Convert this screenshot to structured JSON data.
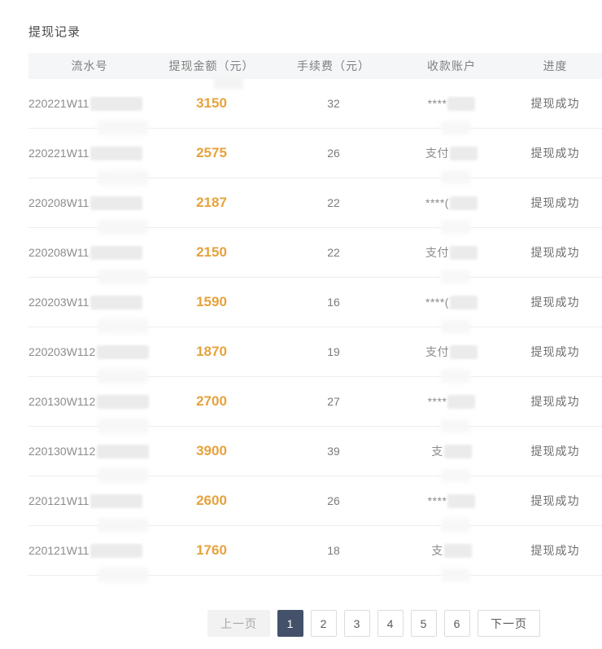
{
  "page": {
    "title": "提现记录"
  },
  "table": {
    "columns": [
      {
        "key": "serial",
        "label": "流水号"
      },
      {
        "key": "amount",
        "label": "提现金额（元）"
      },
      {
        "key": "fee",
        "label": "手续费（元）"
      },
      {
        "key": "account",
        "label": "收款账户"
      },
      {
        "key": "status",
        "label": "进度"
      }
    ],
    "rows": [
      {
        "serial_prefix": "220221W11",
        "amount": "3150",
        "fee": "32",
        "account_prefix": "****",
        "status": "提现成功"
      },
      {
        "serial_prefix": "220221W11",
        "amount": "2575",
        "fee": "26",
        "account_prefix": "支付",
        "status": "提现成功"
      },
      {
        "serial_prefix": "220208W11",
        "amount": "2187",
        "fee": "22",
        "account_prefix": "****(",
        "status": "提现成功"
      },
      {
        "serial_prefix": "220208W11",
        "amount": "2150",
        "fee": "22",
        "account_prefix": "支付",
        "status": "提现成功"
      },
      {
        "serial_prefix": "220203W11",
        "amount": "1590",
        "fee": "16",
        "account_prefix": "****(",
        "status": "提现成功"
      },
      {
        "serial_prefix": "220203W112",
        "amount": "1870",
        "fee": "19",
        "account_prefix": "支付",
        "status": "提现成功"
      },
      {
        "serial_prefix": "220130W112",
        "amount": "2700",
        "fee": "27",
        "account_prefix": "****",
        "status": "提现成功"
      },
      {
        "serial_prefix": "220130W112",
        "amount": "3900",
        "fee": "39",
        "account_prefix": "支",
        "status": "提现成功"
      },
      {
        "serial_prefix": "220121W11",
        "amount": "2600",
        "fee": "26",
        "account_prefix": "****",
        "status": "提现成功"
      },
      {
        "serial_prefix": "220121W11",
        "amount": "1760",
        "fee": "18",
        "account_prefix": "支",
        "status": "提现成功"
      }
    ]
  },
  "pagination": {
    "prev_label": "上一页",
    "next_label": "下一页",
    "pages": [
      "1",
      "2",
      "3",
      "4",
      "5",
      "6"
    ],
    "active_page": "1"
  },
  "colors": {
    "amount": "#e6a23c",
    "active_page_bg": "#44516a"
  }
}
